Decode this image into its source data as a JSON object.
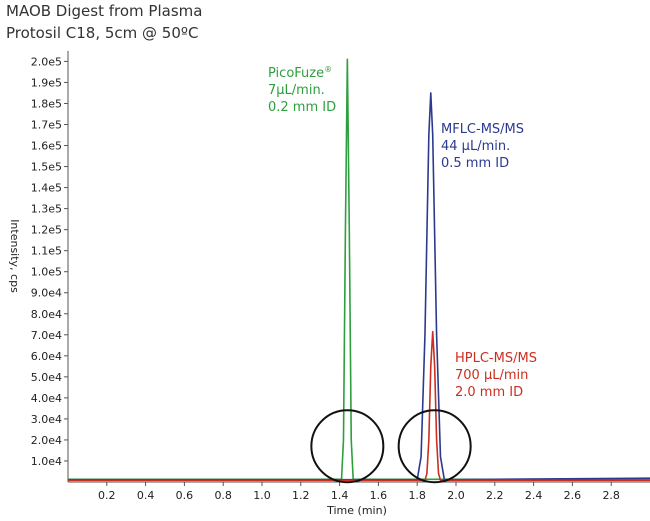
{
  "chart_data": {
    "type": "line",
    "title": "MAOB Digest from Plasma",
    "subtitle": "Protosil C18, 5cm @ 50ºC",
    "xlabel": "Time (min)",
    "ylabel": "Intensity, cps",
    "xlim": [
      0.0,
      3.0
    ],
    "ylim": [
      0,
      204000
    ],
    "x_ticks": [
      0.2,
      0.4,
      0.6,
      0.8,
      1.0,
      1.2,
      1.4,
      1.6,
      1.8,
      2.0,
      2.2,
      2.4,
      2.6,
      2.8
    ],
    "x_tick_labels": [
      "0.2",
      "0.4",
      "0.6",
      "0.8",
      "1.0",
      "1.2",
      "1.4",
      "1.6",
      "1.8",
      "2.0",
      "2.2",
      "2.4",
      "2.6",
      "2.8"
    ],
    "y_ticks": [
      10000,
      20000,
      30000,
      40000,
      50000,
      60000,
      70000,
      80000,
      90000,
      100000,
      110000,
      120000,
      130000,
      140000,
      150000,
      160000,
      170000,
      180000,
      190000,
      200000
    ],
    "y_tick_labels": [
      "1.0e4",
      "2.0e4",
      "3.0e4",
      "4.0e4",
      "5.0e4",
      "6.0e4",
      "7.0e4",
      "8.0e4",
      "9.0e4",
      "1.0e5",
      "1.1e5",
      "1.2e5",
      "1.3e5",
      "1.4e5",
      "1.5e5",
      "1.6e5",
      "1.7e5",
      "1.8e5",
      "1.9e5",
      "2.0e5"
    ],
    "grid": false,
    "series": [
      {
        "color": "#2d9f3d",
        "baseline": 1300,
        "peak_x": 1.44,
        "peak_y": 201000,
        "x": [
          0.0,
          1.41,
          1.42,
          1.43,
          1.44,
          1.45,
          1.46,
          1.47,
          3.0
        ],
        "y": [
          1300,
          1300,
          20000,
          120000,
          201000,
          120000,
          20000,
          1300,
          1300
        ]
      },
      {
        "color": "#2b3a8f",
        "baseline": 1100,
        "peak_x": 1.87,
        "peak_y": 185000,
        "x": [
          0.0,
          1.8,
          1.82,
          1.84,
          1.86,
          1.87,
          1.88,
          1.9,
          1.92,
          1.94,
          3.0
        ],
        "y": [
          1100,
          1100,
          12000,
          70000,
          165000,
          185000,
          165000,
          70000,
          12000,
          1100,
          1800
        ]
      },
      {
        "color": "#cc2e1f",
        "baseline": 800,
        "peak_x": 1.88,
        "peak_y": 71500,
        "x": [
          0.0,
          1.84,
          1.85,
          1.86,
          1.87,
          1.88,
          1.89,
          1.9,
          1.91,
          1.92,
          3.0
        ],
        "y": [
          800,
          800,
          4000,
          20000,
          55000,
          71500,
          55000,
          20000,
          4000,
          800,
          800
        ]
      }
    ],
    "annotations": [
      {
        "lines": [
          "PicoFuze®",
          "7µL/min.",
          "0.2 mm ID"
        ],
        "color": "#2d9f3d"
      },
      {
        "lines": [
          "MFLC-MS/MS",
          "44 µL/min.",
          "0.5 mm ID"
        ],
        "color": "#2b3a8f"
      },
      {
        "lines": [
          "HPLC-MS/MS",
          "700 µL/min",
          "2.0 mm ID"
        ],
        "color": "#cc2e1f"
      }
    ],
    "circles": [
      {
        "center_x": 1.44,
        "center_y": 17000,
        "color": "#111111"
      },
      {
        "center_x": 1.89,
        "center_y": 17000,
        "color": "#111111"
      }
    ]
  }
}
